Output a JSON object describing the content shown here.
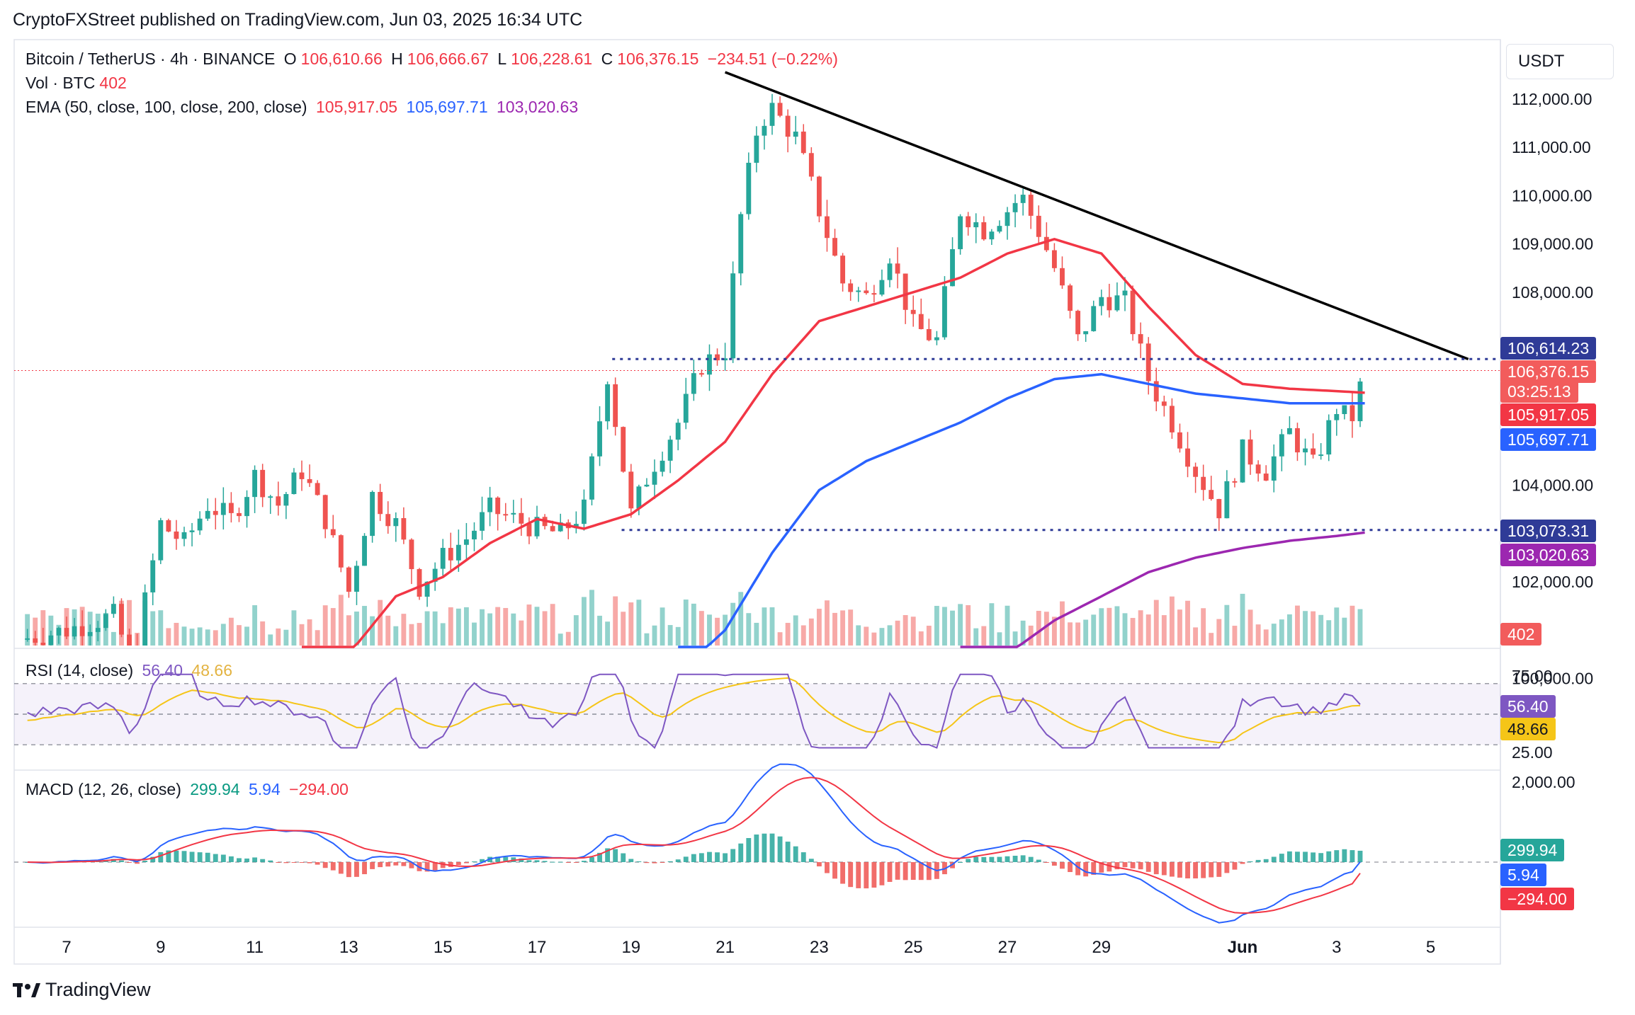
{
  "header": "CryptoFXStreet published on TradingView.com, Jun 03, 2025 16:34 UTC",
  "footer": "TradingView",
  "legend": {
    "symbol": "Bitcoin / TetherUS · 4h · BINANCE",
    "o_label": "O",
    "o": "106,610.66",
    "h_label": "H",
    "h": "106,666.67",
    "l_label": "L",
    "l": "106,228.61",
    "c_label": "C",
    "c": "106,376.15",
    "change": "−234.51 (−0.22%)",
    "vol_label": "Vol · BTC",
    "vol": "402",
    "ema_label": "EMA (50, close, 100, close, 200, close)",
    "ema50": "105,917.05",
    "ema100": "105,697.71",
    "ema200": "103,020.63",
    "rsi_label": "RSI (14, close)",
    "rsi": "56.40",
    "rsi_ma": "48.66",
    "macd_label": "MACD (12, 26, close)",
    "macd_hist": "299.94",
    "macd": "5.94",
    "macd_signal": "−294.00"
  },
  "price_axis": {
    "unit": "USDT",
    "ticks": [
      "112,000.00",
      "111,000.00",
      "110,000.00",
      "109,000.00",
      "108,000.00",
      "104,000.00",
      "102,000.00",
      "100,000.00"
    ]
  },
  "price_tags": [
    {
      "text": "106,614.23",
      "color": "#2f3b97"
    },
    {
      "text": "106,376.15",
      "color": "#f25c5c"
    },
    {
      "text": "03:25:13",
      "color": "#f25c5c"
    },
    {
      "text": "105,917.05",
      "color": "#f23645"
    },
    {
      "text": "105,697.71",
      "color": "#2962ff"
    },
    {
      "text": "103,073.31",
      "color": "#2f3b97"
    },
    {
      "text": "103,020.63",
      "color": "#9c27b0"
    },
    {
      "text": "402",
      "color": "#f25c5c"
    }
  ],
  "rsi_axis": {
    "ticks": [
      "75.00",
      "25.00"
    ],
    "tags": [
      {
        "text": "56.40",
        "color": "#7e57c2"
      },
      {
        "text": "48.66",
        "color": "#f5c518"
      }
    ]
  },
  "macd_axis": {
    "ticks": [
      "2,000.00"
    ],
    "tags": [
      {
        "text": "299.94",
        "color": "#26a69a"
      },
      {
        "text": "5.94",
        "color": "#2962ff"
      },
      {
        "text": "−294.00",
        "color": "#f23645"
      }
    ]
  },
  "x_axis": {
    "labels": [
      "7",
      "9",
      "11",
      "13",
      "15",
      "17",
      "19",
      "21",
      "23",
      "25",
      "27",
      "29",
      "Jun",
      "3",
      "5"
    ]
  },
  "colors": {
    "up": "#26a69a",
    "down": "#ef5350",
    "ema50": "#f23645",
    "ema100": "#2962ff",
    "ema200": "#9c27b0",
    "trend": "#000000",
    "levels": "#2f3b97",
    "rsi": "#7e57c2",
    "rsi_ma": "#f5c518"
  },
  "chart_data": {
    "type": "candlestick",
    "title": "Bitcoin / TetherUS · 4h · BINANCE",
    "ylim": [
      99700,
      112500
    ],
    "x_labels": [
      "7",
      "9",
      "11",
      "13",
      "15",
      "17",
      "19",
      "21",
      "23",
      "25",
      "27",
      "29",
      "Jun",
      "3",
      "5"
    ],
    "x_label_days": [
      7,
      9,
      11,
      13,
      15,
      17,
      19,
      21,
      23,
      25,
      27,
      29,
      32,
      34,
      36
    ],
    "closes_anchor": [
      [
        6.0,
        100800
      ],
      [
        7.0,
        101000
      ],
      [
        8.0,
        101300
      ],
      [
        8.4,
        100300
      ],
      [
        9.0,
        103200
      ],
      [
        9.5,
        102800
      ],
      [
        10.0,
        103600
      ],
      [
        10.5,
        103300
      ],
      [
        11.0,
        104200
      ],
      [
        11.5,
        103600
      ],
      [
        12.0,
        104300
      ],
      [
        12.5,
        103300
      ],
      [
        13.0,
        101800
      ],
      [
        13.5,
        103800
      ],
      [
        14.0,
        103200
      ],
      [
        14.5,
        101900
      ],
      [
        15.0,
        102500
      ],
      [
        15.5,
        102900
      ],
      [
        16.0,
        103500
      ],
      [
        16.5,
        103300
      ],
      [
        17.0,
        103100
      ],
      [
        17.5,
        103000
      ],
      [
        18.0,
        103500
      ],
      [
        18.5,
        106300
      ],
      [
        19.0,
        103400
      ],
      [
        19.4,
        104300
      ],
      [
        20.0,
        105300
      ],
      [
        20.5,
        106500
      ],
      [
        21.0,
        106800
      ],
      [
        21.3,
        109400
      ],
      [
        21.7,
        111500
      ],
      [
        22.0,
        111800
      ],
      [
        22.5,
        111200
      ],
      [
        23.0,
        109700
      ],
      [
        23.5,
        108200
      ],
      [
        24.0,
        107900
      ],
      [
        24.5,
        108800
      ],
      [
        25.0,
        107300
      ],
      [
        25.5,
        107000
      ],
      [
        26.0,
        109700
      ],
      [
        26.5,
        109300
      ],
      [
        27.0,
        109700
      ],
      [
        27.3,
        110000
      ],
      [
        27.7,
        109200
      ],
      [
        28.0,
        108500
      ],
      [
        28.5,
        107000
      ],
      [
        29.0,
        107900
      ],
      [
        29.5,
        107800
      ],
      [
        30.0,
        106200
      ],
      [
        30.5,
        105300
      ],
      [
        31.0,
        104300
      ],
      [
        31.5,
        103500
      ],
      [
        32.0,
        104700
      ],
      [
        32.5,
        104300
      ],
      [
        33.0,
        105100
      ],
      [
        33.5,
        104400
      ],
      [
        34.0,
        105600
      ],
      [
        34.3,
        105300
      ],
      [
        34.6,
        106380
      ]
    ],
    "ema50_anchor": [
      [
        12.0,
        99600
      ],
      [
        13.0,
        100500
      ],
      [
        14.0,
        101700
      ],
      [
        15.0,
        102100
      ],
      [
        16.0,
        102800
      ],
      [
        17.0,
        103300
      ],
      [
        18.0,
        103100
      ],
      [
        19.0,
        103400
      ],
      [
        20.0,
        104100
      ],
      [
        21.0,
        104900
      ],
      [
        22.0,
        106300
      ],
      [
        23.0,
        107400
      ],
      [
        24.0,
        107700
      ],
      [
        25.0,
        108000
      ],
      [
        26.0,
        108300
      ],
      [
        27.0,
        108800
      ],
      [
        28.0,
        109100
      ],
      [
        29.0,
        108800
      ],
      [
        30.0,
        107700
      ],
      [
        31.0,
        106700
      ],
      [
        32.0,
        106100
      ],
      [
        33.0,
        106000
      ],
      [
        34.0,
        105950
      ],
      [
        34.6,
        105917
      ]
    ],
    "ema100_anchor": [
      [
        20.0,
        100100
      ],
      [
        21.0,
        101000
      ],
      [
        22.0,
        102600
      ],
      [
        23.0,
        103900
      ],
      [
        24.0,
        104500
      ],
      [
        25.0,
        104900
      ],
      [
        26.0,
        105300
      ],
      [
        27.0,
        105800
      ],
      [
        28.0,
        106200
      ],
      [
        29.0,
        106300
      ],
      [
        30.0,
        106100
      ],
      [
        31.0,
        105900
      ],
      [
        32.0,
        105800
      ],
      [
        33.0,
        105700
      ],
      [
        34.6,
        105698
      ]
    ],
    "ema200_anchor": [
      [
        26.0,
        99800
      ],
      [
        27.0,
        100500
      ],
      [
        28.0,
        101200
      ],
      [
        29.0,
        101700
      ],
      [
        30.0,
        102200
      ],
      [
        31.0,
        102500
      ],
      [
        32.0,
        102700
      ],
      [
        33.0,
        102850
      ],
      [
        34.0,
        102950
      ],
      [
        34.6,
        103021
      ]
    ],
    "trendline": [
      [
        21.0,
        112000
      ],
      [
        36.8,
        106614
      ]
    ],
    "levels": [
      {
        "value": 106614.23,
        "from": 18.6
      },
      {
        "value": 103073.31,
        "from": 18.8
      }
    ],
    "rsi": {
      "value": 56.4,
      "ma": 48.66,
      "ylim": [
        20,
        80
      ],
      "bands": [
        30,
        70
      ]
    },
    "macd": {
      "hist": 299.94,
      "macd": 5.94,
      "signal": -294.0,
      "ylim": [
        -1100,
        2200
      ]
    }
  }
}
